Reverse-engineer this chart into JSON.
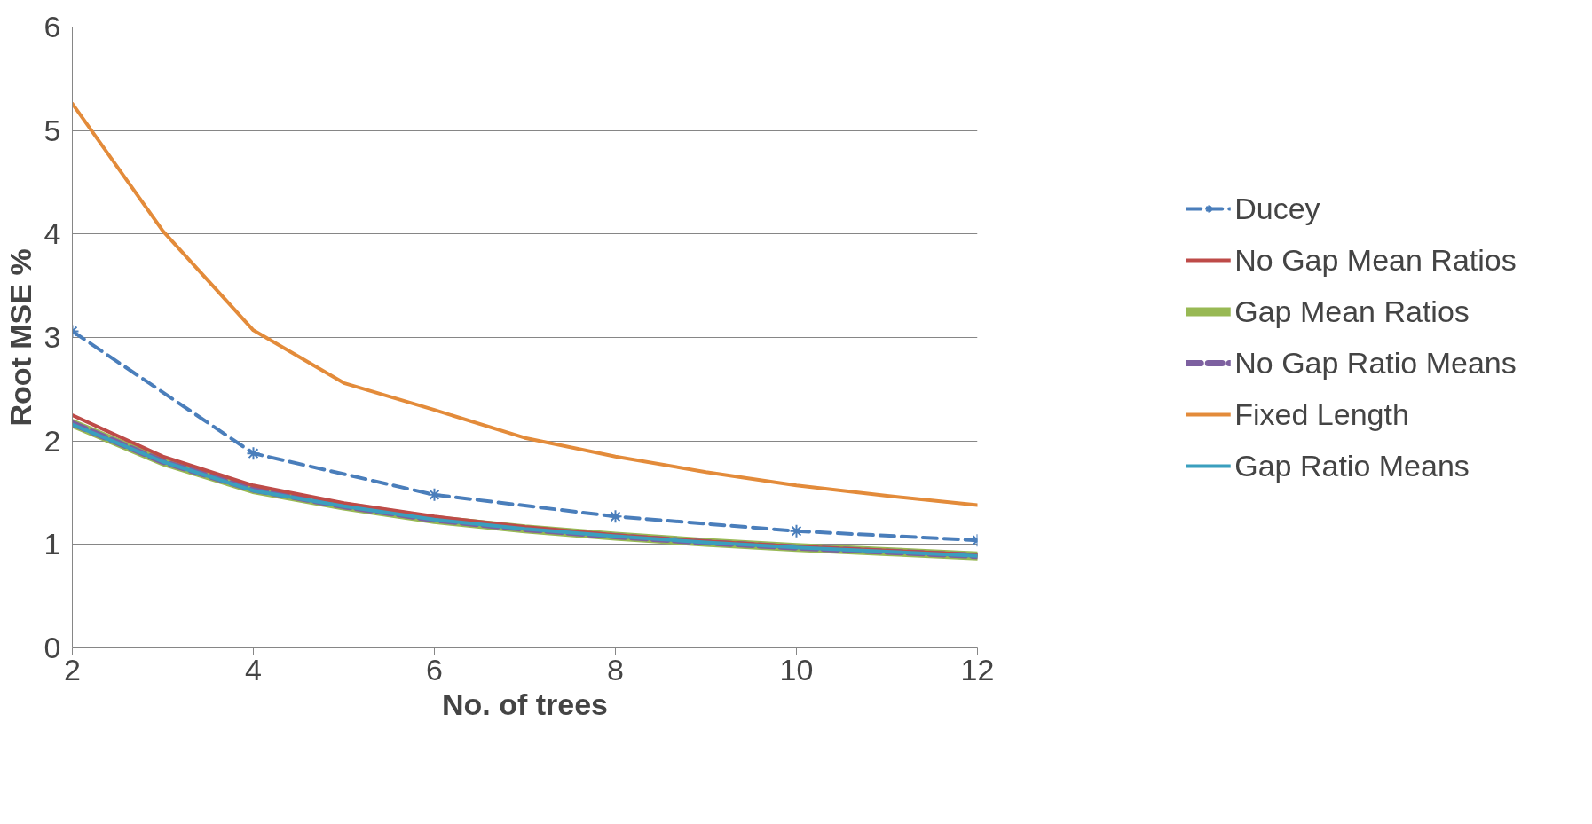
{
  "chart_data": {
    "type": "line",
    "xlabel": "No. of trees",
    "ylabel": "Root MSE %",
    "xlim": [
      2,
      12
    ],
    "xticks": [
      2,
      4,
      6,
      8,
      10,
      12
    ],
    "ylim": [
      0,
      6
    ],
    "yticks": [
      0,
      1,
      2,
      3,
      4,
      5,
      6
    ],
    "grid": "y",
    "legend": "right",
    "series": [
      {
        "name": "Ducey",
        "color": "#4a7ebb",
        "line_style": "dashed",
        "marker": "cross",
        "x": [
          2,
          4,
          6,
          8,
          10,
          12
        ],
        "values": [
          3.06,
          1.88,
          1.48,
          1.27,
          1.13,
          1.04
        ]
      },
      {
        "name": "No Gap Mean Ratios",
        "color": "#be4b48",
        "line_style": "solid",
        "x": [
          2,
          3,
          4,
          5,
          6,
          7,
          8,
          9,
          10,
          11,
          12
        ],
        "values": [
          2.25,
          1.85,
          1.57,
          1.4,
          1.27,
          1.17,
          1.09,
          1.03,
          0.98,
          0.94,
          0.9
        ]
      },
      {
        "name": "Gap Mean Ratios",
        "color": "#98b954",
        "line_style": "solid",
        "x": [
          2,
          3,
          4,
          5,
          6,
          7,
          8,
          9,
          10,
          11,
          12
        ],
        "values": [
          2.17,
          1.8,
          1.53,
          1.37,
          1.24,
          1.15,
          1.08,
          1.02,
          0.97,
          0.93,
          0.89
        ]
      },
      {
        "name": "No Gap Ratio Means",
        "color": "#7d60a0",
        "line_style": "dashed",
        "x": [
          2,
          3,
          4,
          5,
          6,
          7,
          8,
          9,
          10,
          11,
          12
        ],
        "values": [
          2.17,
          1.8,
          1.53,
          1.37,
          1.24,
          1.15,
          1.08,
          1.02,
          0.97,
          0.93,
          0.89
        ]
      },
      {
        "name": "Fixed Length",
        "color": "#e38b3a",
        "line_style": "solid",
        "x": [
          2,
          3,
          4,
          5,
          6,
          7,
          8,
          9,
          10,
          11,
          12
        ],
        "values": [
          5.26,
          4.03,
          3.07,
          2.56,
          2.3,
          2.03,
          1.85,
          1.7,
          1.57,
          1.47,
          1.38
        ]
      },
      {
        "name": "Gap Ratio Means",
        "color": "#3a9fbe",
        "line_style": "solid",
        "x": [
          2,
          3,
          4,
          5,
          6,
          7,
          8,
          9,
          10,
          11,
          12
        ],
        "values": [
          2.16,
          1.8,
          1.52,
          1.37,
          1.24,
          1.15,
          1.08,
          1.02,
          0.97,
          0.93,
          0.89
        ]
      }
    ]
  }
}
